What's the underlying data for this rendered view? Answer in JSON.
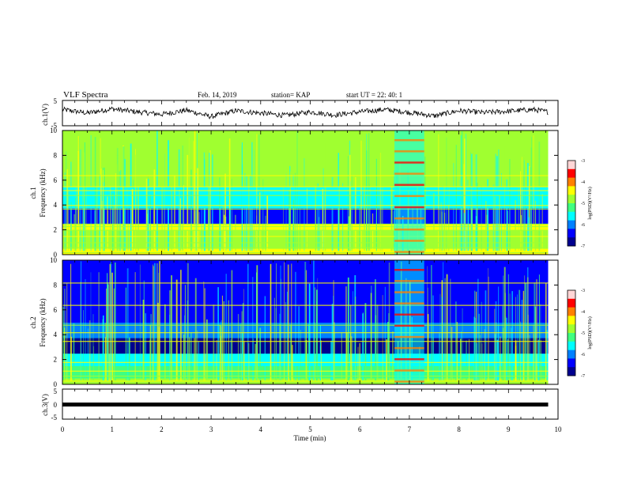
{
  "header": {
    "title": "VLF Spectra",
    "date": "Feb. 14, 2019",
    "station": "station= KAP",
    "start": "start  UT =   22: 40: 1"
  },
  "colors": {
    "colormap": [
      "#00008f",
      "#0000ff",
      "#0080ff",
      "#00ffff",
      "#40ff80",
      "#a0ff30",
      "#ffff00",
      "#ff8000",
      "#ff0000",
      "#ffd6d6"
    ],
    "trace": "#000000",
    "frame": "#000000"
  },
  "chart_data": [
    {
      "type": "line",
      "name": "ch1-waveform",
      "ylabel": "ch.1(V)",
      "ylim": [
        -5,
        5
      ],
      "yticks": [
        "5",
        "-5"
      ],
      "xlim": [
        0,
        10
      ],
      "description_values": {
        "x": [
          0,
          0.5,
          1,
          1.5,
          2,
          2.5,
          3,
          3.5,
          4,
          4.5,
          5,
          5.5,
          6,
          6.5,
          7,
          7.5,
          8,
          8.5,
          9,
          9.5,
          9.8
        ],
        "y": [
          1.5,
          0,
          1.8,
          0.5,
          -0.5,
          1.2,
          -1.5,
          1.0,
          0,
          -1.0,
          0.5,
          -0.8,
          0.5,
          1.5,
          0.3,
          -1.2,
          1.0,
          0.2,
          0.8,
          1.5,
          0.5
        ]
      }
    },
    {
      "type": "heatmap",
      "name": "ch1-spectrogram",
      "ylabel": "ch.1\nFrequency (kHz)",
      "ylim": [
        0,
        10
      ],
      "yticks": [
        "0",
        "2",
        "4",
        "6",
        "8",
        "10"
      ],
      "xlim": [
        0,
        10
      ],
      "colorbar": {
        "label": "log(PSD)(V²/Hz)",
        "range": [
          -7,
          -3
        ],
        "ticks": [
          "-3",
          "-4",
          "-5",
          "-6",
          "-7"
        ]
      },
      "lines_khz": [
        0.2,
        0.6,
        1.0,
        1.5,
        2.0,
        2.3,
        2.5,
        3.7,
        4.0,
        4.8,
        5.2,
        5.5,
        6.4
      ],
      "burst_minutes": [
        6.7,
        7.3
      ]
    },
    {
      "type": "heatmap",
      "name": "ch2-spectrogram",
      "ylabel": "ch.2\nFrequency (kHz)",
      "ylim": [
        0,
        10
      ],
      "yticks": [
        "0",
        "2",
        "4",
        "6",
        "8",
        "10"
      ],
      "xlim": [
        0,
        10
      ],
      "colorbar": {
        "label": "log(PSD)(V²/Hz)",
        "range": [
          -7,
          -3
        ],
        "ticks": [
          "-3",
          "-4",
          "-5",
          "-6",
          "-7"
        ]
      },
      "lines_khz": [
        0.3,
        0.7,
        1.1,
        1.8,
        3.5,
        4.2,
        4.8,
        6.4,
        8.2
      ],
      "burst_minutes": [
        6.7,
        7.3
      ]
    },
    {
      "type": "line",
      "name": "ch3-waveform",
      "ylabel": "ch.3(V)",
      "ylim": [
        -5,
        5
      ],
      "yticks": [
        "5",
        "0",
        "-5"
      ],
      "xlim": [
        0,
        10
      ],
      "x": [
        0,
        9.8
      ],
      "y": [
        0,
        0
      ]
    }
  ],
  "xaxis": {
    "label": "Time  (min)",
    "ticks": [
      "0",
      "1",
      "2",
      "3",
      "4",
      "5",
      "6",
      "7",
      "8",
      "9",
      "10"
    ]
  }
}
